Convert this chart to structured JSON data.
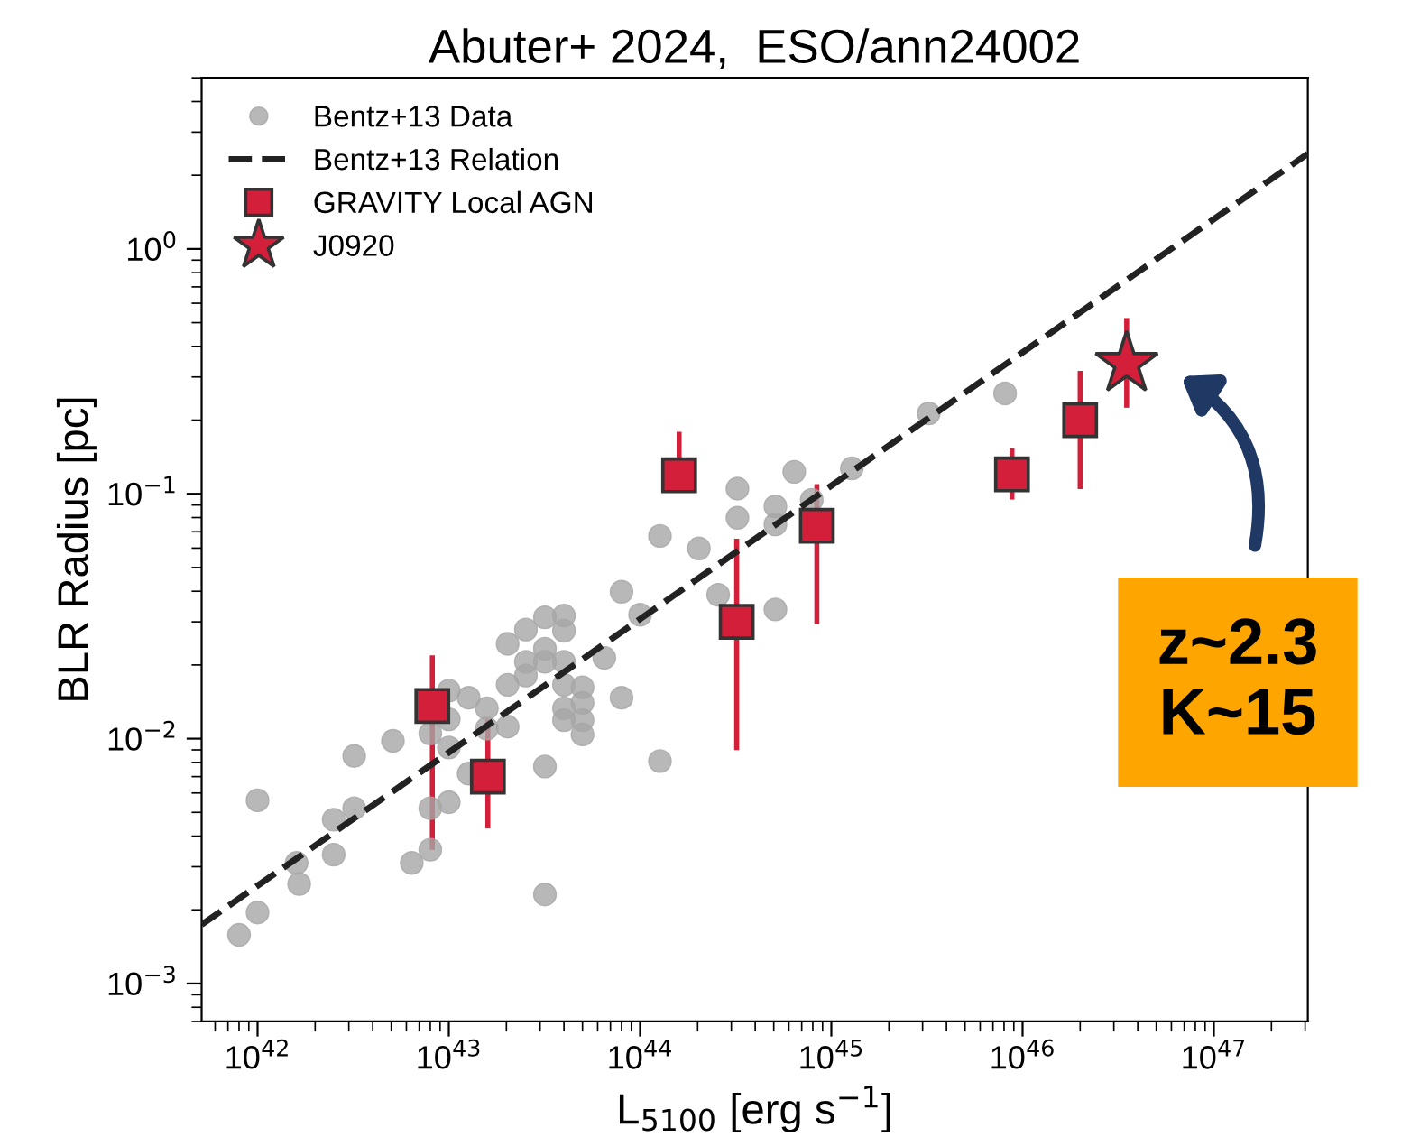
{
  "chart_data": {
    "type": "scatter",
    "title": "Abuter+ 2024,  ESO/ann24002",
    "xlabel": "L$_{5100}$ [erg s$^{−1}$]",
    "ylabel": "BLR Radius [pc]",
    "log": "xy",
    "xlim": [
      5.1e+41,
      3.1e+47
    ],
    "ylim": [
      0.0007,
      5
    ],
    "xticks": [
      {
        "value": 1e+42,
        "label": "10$^{42}$"
      },
      {
        "value": 1e+43,
        "label": "10$^{43}$"
      },
      {
        "value": 1e+44,
        "label": "10$^{44}$"
      },
      {
        "value": 1e+45,
        "label": "10$^{45}$"
      },
      {
        "value": 1e+46,
        "label": "10$^{46}$"
      },
      {
        "value": 1e+47,
        "label": "10$^{47}$"
      }
    ],
    "yticks": [
      {
        "value": 0.001,
        "label": "10$^{−3}$"
      },
      {
        "value": 0.01,
        "label": "10$^{−2}$"
      },
      {
        "value": 0.1,
        "label": "10$^{−1}$"
      },
      {
        "value": 1,
        "label": "10$^{0}$"
      }
    ],
    "grid": false,
    "legend": "top left",
    "series": [
      {
        "name": "Bentz+13 Data",
        "marker": "circle",
        "color": "#a6a6a6",
        "x": [
          8e+41,
          1e+42,
          1e+42,
          1.6e+42,
          1.65e+42,
          2.5e+42,
          2.5e+42,
          3.2e+42,
          3.2e+42,
          5.1e+42,
          6.4e+42,
          8e+42,
          8e+42,
          8e+42,
          1e+43,
          1e+43,
          1e+43,
          1e+43,
          1.27e+43,
          1.27e+43,
          1.58e+43,
          1.58e+43,
          2.03e+43,
          2.03e+43,
          2.03e+43,
          2.53e+43,
          2.53e+43,
          2.53e+43,
          3.18e+43,
          3.18e+43,
          3.18e+43,
          3.18e+43,
          3.18e+43,
          4e+43,
          4e+43,
          4e+43,
          4e+43,
          4e+43,
          4e+43,
          5e+43,
          5e+43,
          5e+43,
          5e+43,
          6.5e+43,
          8e+43,
          8e+43,
          1e+44,
          1.27e+44,
          1.27e+44,
          2.03e+44,
          2.56e+44,
          3.23e+44,
          3.23e+44,
          5.1e+44,
          5.1e+44,
          5.1e+44,
          6.4e+44,
          7.9e+44,
          1.28e+45,
          3.23e+45,
          8.1e+45
        ],
        "values": [
          0.00158,
          0.00195,
          0.0056,
          0.00311,
          0.00255,
          0.00467,
          0.00336,
          0.0085,
          0.0052,
          0.0098,
          0.00311,
          0.00352,
          0.0052,
          0.0105,
          0.0157,
          0.012,
          0.0055,
          0.0092,
          0.0147,
          0.0072,
          0.0133,
          0.011,
          0.0244,
          0.0166,
          0.0112,
          0.0279,
          0.0206,
          0.0181,
          0.0313,
          0.0233,
          0.0206,
          0.0077,
          0.00231,
          0.0318,
          0.0276,
          0.0206,
          0.0166,
          0.0133,
          0.0119,
          0.0162,
          0.014,
          0.0119,
          0.0104,
          0.0214,
          0.0398,
          0.0147,
          0.0321,
          0.0673,
          0.0081,
          0.0598,
          0.0387,
          0.0798,
          0.105,
          0.0889,
          0.075,
          0.0337,
          0.123,
          0.0945,
          0.127,
          0.213,
          0.257
        ]
      },
      {
        "name": "Bentz+13 Relation",
        "type": "line",
        "line_style": "dashed",
        "marker": "none",
        "color": "#222222",
        "x": [
          5.1e+41,
          3.1e+47
        ],
        "values": [
          0.00174,
          2.45
        ]
      },
      {
        "name": "GRAVITY Local AGN",
        "marker": "square",
        "color": "#d41f3a",
        "x": [
          8.2e+42,
          1.6e+43,
          1.6e+44,
          3.2e+44,
          8.4e+44,
          8.8e+45,
          2e+46
        ],
        "values": [
          0.0136,
          0.007,
          0.119,
          0.03,
          0.074,
          0.12,
          0.2
        ],
        "errors": [
          [
            0.0036,
            0.0214
          ],
          [
            0.0044,
            0.0119
          ],
          [
            0.105,
            0.175
          ],
          [
            0.0092,
            0.064
          ],
          [
            0.03,
            0.107
          ],
          [
            0.097,
            0.15
          ],
          [
            0.107,
            0.31
          ]
        ]
      },
      {
        "name": "J0920",
        "marker": "star",
        "color": "#d41f3a",
        "x": [
          3.5e+46
        ],
        "values": [
          0.34
        ],
        "errors": [
          [
            0.23,
            0.51
          ]
        ]
      }
    ],
    "annotations": [
      "z~2.3\nK~15"
    ]
  }
}
